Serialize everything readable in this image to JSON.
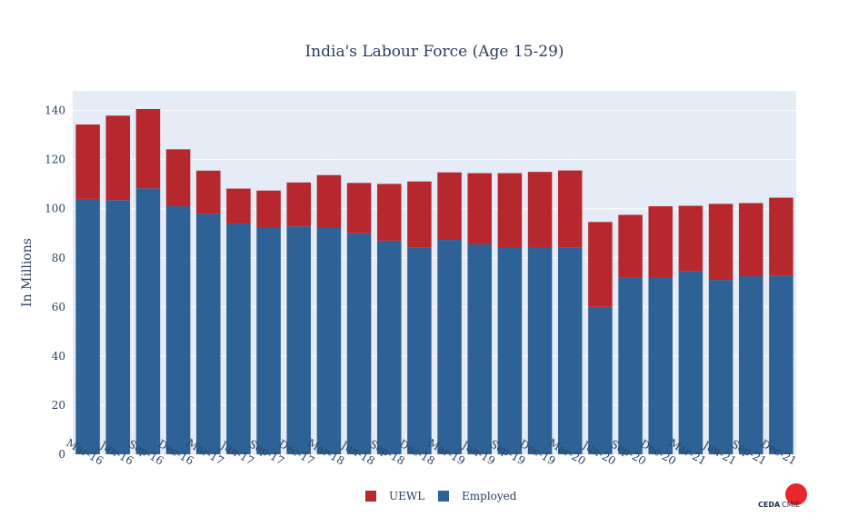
{
  "chart_data": {
    "type": "bar",
    "stacked": true,
    "title": "India's Labour Force (Age 15-29)",
    "ylabel": "In Millions",
    "xlabel": "",
    "ylim": [
      0,
      148
    ],
    "yticks": [
      0,
      20,
      40,
      60,
      80,
      100,
      120,
      140
    ],
    "grid": true,
    "legend_position": "bottom-center",
    "categories": [
      "Mar-16",
      "Jun-16",
      "Sep-16",
      "Dec-16",
      "Mar-17",
      "Jun-17",
      "Sep-17",
      "Dec-17",
      "Mar-18",
      "Jun-18",
      "Sep-18",
      "Dec-18",
      "Mar-19",
      "Jun-19",
      "Sep-19",
      "Dec-19",
      "Mar-20",
      "Jun-20",
      "Sep-20",
      "Dec-20",
      "Mar-21",
      "Jun-21",
      "Sep-21",
      "Dec-21"
    ],
    "series": [
      {
        "name": "Employed",
        "color": "#2e6196",
        "values": [
          104,
          103.5,
          108.3,
          101,
          98,
          94,
          92.5,
          92.8,
          92.5,
          90,
          87,
          84.3,
          87.3,
          85.5,
          84,
          84,
          84.3,
          60,
          72,
          71.8,
          74.6,
          71,
          72.5,
          72.8
        ]
      },
      {
        "name": "UEWL",
        "color": "#b7282e",
        "values": [
          30.3,
          34.4,
          32.3,
          23.2,
          17.5,
          14.2,
          14.9,
          17.9,
          21.2,
          20.5,
          23.1,
          26.8,
          27.5,
          29,
          30.5,
          31,
          31.3,
          34.6,
          25.5,
          29.2,
          26.6,
          31,
          29.8,
          31.7
        ]
      }
    ],
    "legend_order": [
      "UEWL",
      "Employed"
    ]
  },
  "colors": {
    "plot_bg": "#e5ecf6",
    "grid": "#ffffff",
    "text": "#2a3f5f",
    "brand_red": "#e8262b"
  },
  "brand": {
    "logo_left": "CEDA",
    "logo_right": "CMIE"
  }
}
